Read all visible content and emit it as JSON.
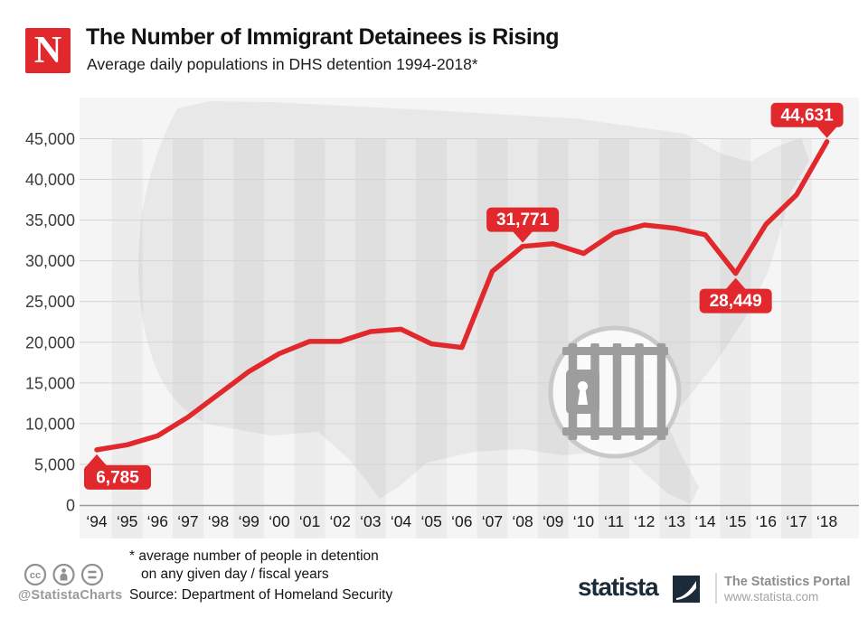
{
  "page": {
    "background": "#ffffff"
  },
  "header": {
    "logo_letter": "N",
    "logo_color": "#e0282d",
    "title": "The Number of Immigrant Detainees is Rising",
    "subtitle": "Average daily populations in DHS detention 1994-2018*"
  },
  "chart_data": {
    "type": "line",
    "title": "Average daily populations in DHS detention 1994-2018",
    "years": [
      1994,
      1995,
      1996,
      1997,
      1998,
      1999,
      2000,
      2001,
      2002,
      2003,
      2004,
      2005,
      2006,
      2007,
      2008,
      2009,
      2010,
      2011,
      2012,
      2013,
      2014,
      2015,
      2016,
      2017,
      2018
    ],
    "x_tick_labels": [
      "‘94",
      "‘95",
      "‘96",
      "‘97",
      "‘98",
      "‘99",
      "‘00",
      "‘01",
      "‘02",
      "‘03",
      "‘04",
      "‘05",
      "‘06",
      "‘07",
      "‘08",
      "‘09",
      "‘10",
      "‘11",
      "‘12",
      "‘13",
      "‘14",
      "‘15",
      "‘16",
      "‘17",
      "‘18"
    ],
    "values": [
      6785,
      7400,
      8500,
      10800,
      13600,
      16400,
      18600,
      20100,
      20100,
      21300,
      21600,
      19800,
      19350,
      28700,
      31771,
      32100,
      30900,
      33400,
      34400,
      34000,
      33200,
      28449,
      34500,
      38100,
      44631
    ],
    "labeled_points": [
      {
        "year": 1994,
        "label": "6,785",
        "side": "below",
        "align": "left"
      },
      {
        "year": 2008,
        "label": "31,771",
        "side": "above",
        "align": "center"
      },
      {
        "year": 2015,
        "label": "28,449",
        "side": "below",
        "align": "center"
      },
      {
        "year": 2018,
        "label": "44,631",
        "side": "above",
        "align": "right"
      }
    ],
    "ylim": [
      0,
      45000
    ],
    "y_tick_values": [
      0,
      5000,
      10000,
      15000,
      20000,
      25000,
      30000,
      35000,
      40000,
      45000
    ],
    "y_tick_labels": [
      "0",
      "5,000",
      "10,000",
      "15,000",
      "20,000",
      "25,000",
      "30,000",
      "35,000",
      "40,000",
      "45,000"
    ],
    "line_color": "#e0282d",
    "grid": "horizontal",
    "legend": "none",
    "watermark": "jail-bars-in-circle-over-us-map"
  },
  "footer": {
    "license_icons": [
      "cc-icon",
      "attribution-icon",
      "equals-icon"
    ],
    "handle": "@StatistaCharts",
    "footnote_line1": "* average number of people in detention",
    "footnote_line2": "on any given day / fiscal years",
    "source": "Source: Department of Homeland Security",
    "brand": {
      "wordmark": "statista",
      "tagline": "The Statistics Portal",
      "url": "www.statista.com",
      "color": "#1c2b3a"
    }
  }
}
